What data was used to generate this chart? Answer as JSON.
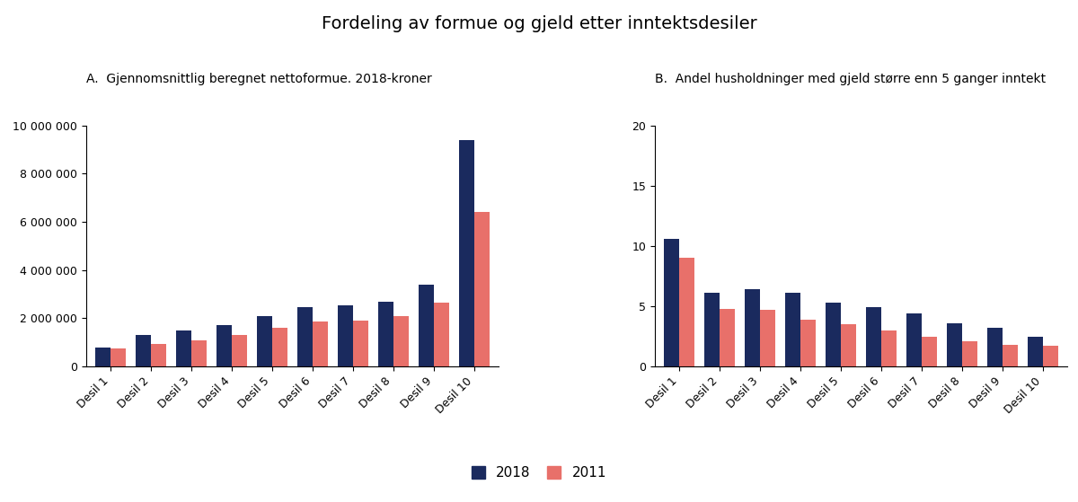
{
  "title": "Fordeling av formue og gjeld etter inntektsdesiler",
  "subtitle_a": "A.  Gjennomsnittlig beregnet nettoformue. 2018-kroner",
  "subtitle_b": "B.  Andel husholdninger med gjeld større enn 5 ganger inntekt",
  "categories": [
    "Desil 1",
    "Desil 2",
    "Desil 3",
    "Desil 4",
    "Desil 5",
    "Desil 6",
    "Desil 7",
    "Desil 8",
    "Desil 9",
    "Desil 10"
  ],
  "chart_a_2018": [
    800000,
    1300000,
    1500000,
    1700000,
    2100000,
    2450000,
    2550000,
    2700000,
    3400000,
    9400000
  ],
  "chart_a_2011": [
    750000,
    950000,
    1100000,
    1300000,
    1600000,
    1850000,
    1900000,
    2100000,
    2650000,
    6400000
  ],
  "chart_b_2018": [
    10.6,
    6.1,
    6.4,
    6.1,
    5.3,
    4.9,
    4.4,
    3.6,
    3.2,
    2.5
  ],
  "chart_b_2011": [
    9.0,
    4.8,
    4.7,
    3.9,
    3.5,
    3.0,
    2.5,
    2.1,
    1.8,
    1.7
  ],
  "color_2018": "#1a2a5e",
  "color_2011": "#e8706a",
  "legend_2018": "2018",
  "legend_2011": "2011",
  "ylim_a": [
    0,
    10000000
  ],
  "yticks_a": [
    0,
    2000000,
    4000000,
    6000000,
    8000000,
    10000000
  ],
  "ylim_b": [
    0,
    20
  ],
  "yticks_b": [
    0,
    5,
    10,
    15,
    20
  ],
  "bg_color": "#ffffff",
  "title_fontsize": 14,
  "subtitle_fontsize": 10,
  "tick_fontsize": 9
}
